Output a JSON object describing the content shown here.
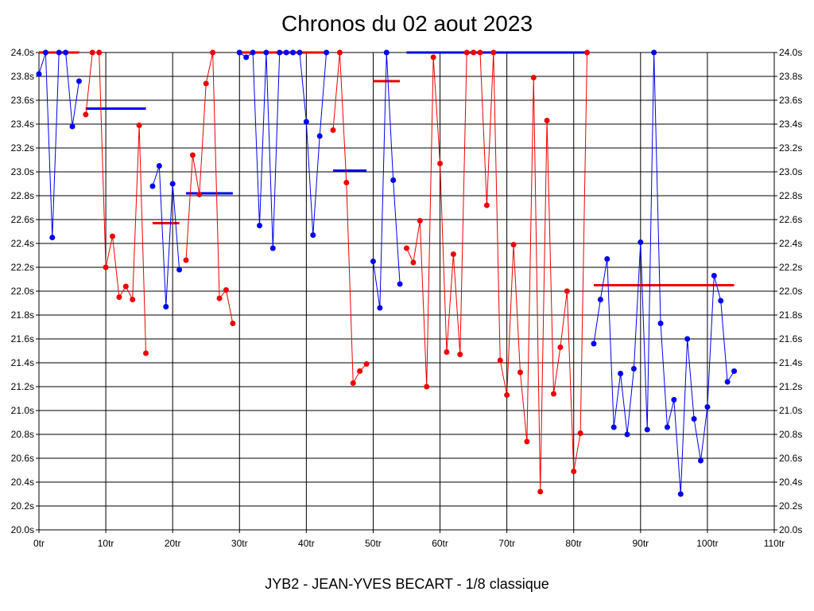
{
  "chart_data": {
    "type": "line",
    "title": "Chronos du 02 aout 2023",
    "subtitle": "JYB2 - JEAN-YVES BECART - 1/8 classique",
    "xlim": [
      0,
      110
    ],
    "ylim": [
      20.0,
      24.0
    ],
    "x_ticks": [
      0,
      10,
      20,
      30,
      40,
      50,
      60,
      70,
      80,
      90,
      100,
      110
    ],
    "x_tick_labels": [
      "0tr",
      "10tr",
      "20tr",
      "30tr",
      "40tr",
      "50tr",
      "60tr",
      "70tr",
      "80tr",
      "90tr",
      "100tr",
      "110tr"
    ],
    "y_ticks": [
      20.0,
      20.2,
      20.4,
      20.6,
      20.8,
      21.0,
      21.2,
      21.4,
      21.6,
      21.8,
      22.0,
      22.2,
      22.4,
      22.6,
      22.8,
      23.0,
      23.2,
      23.4,
      23.6,
      23.8,
      24.0
    ],
    "y_tick_labels": [
      "20.0s",
      "20.2s",
      "20.4s",
      "20.6s",
      "20.8s",
      "21.0s",
      "21.2s",
      "21.4s",
      "21.6s",
      "21.8s",
      "22.0s",
      "22.2s",
      "22.4s",
      "22.6s",
      "22.8s",
      "23.0s",
      "23.2s",
      "23.4s",
      "23.6s",
      "23.8s",
      "24.0s"
    ],
    "grid": true,
    "y_axis_both_sides": true,
    "colors": {
      "blue": "#0000ee",
      "red": "#ee0000"
    },
    "series": [
      {
        "color": "blue",
        "points": [
          [
            0,
            23.82
          ],
          [
            1,
            24.0
          ],
          [
            2,
            22.45
          ],
          [
            3,
            24.0
          ],
          [
            4,
            24.0
          ],
          [
            5,
            23.38
          ],
          [
            6,
            23.76
          ]
        ]
      },
      {
        "color": "red",
        "points": [
          [
            7,
            23.48
          ],
          [
            8,
            24.0
          ],
          [
            9,
            24.0
          ],
          [
            10,
            22.2
          ],
          [
            11,
            22.46
          ],
          [
            12,
            21.95
          ],
          [
            13,
            22.04
          ],
          [
            14,
            21.93
          ],
          [
            15,
            23.39
          ],
          [
            16,
            21.48
          ]
        ]
      },
      {
        "color": "blue",
        "points": [
          [
            17,
            22.88
          ],
          [
            18,
            23.05
          ],
          [
            19,
            21.87
          ],
          [
            20,
            22.9
          ],
          [
            21,
            22.18
          ]
        ]
      },
      {
        "color": "red",
        "points": [
          [
            22,
            22.26
          ],
          [
            23,
            23.14
          ],
          [
            24,
            22.81
          ],
          [
            25,
            23.74
          ],
          [
            26,
            24.0
          ],
          [
            27,
            21.94
          ],
          [
            28,
            22.01
          ],
          [
            29,
            21.73
          ]
        ]
      },
      {
        "color": "blue",
        "points": [
          [
            30,
            24.0
          ],
          [
            31,
            23.96
          ],
          [
            32,
            24.0
          ],
          [
            33,
            22.55
          ],
          [
            34,
            24.0
          ],
          [
            35,
            22.36
          ],
          [
            36,
            24.0
          ],
          [
            37,
            24.0
          ],
          [
            38,
            24.0
          ],
          [
            39,
            24.0
          ],
          [
            40,
            23.42
          ],
          [
            41,
            22.47
          ],
          [
            42,
            23.3
          ],
          [
            43,
            24.0
          ]
        ]
      },
      {
        "color": "red",
        "points": [
          [
            44,
            23.35
          ],
          [
            45,
            24.0
          ],
          [
            46,
            22.91
          ],
          [
            47,
            21.23
          ],
          [
            48,
            21.33
          ],
          [
            49,
            21.39
          ]
        ]
      },
      {
        "color": "blue",
        "points": [
          [
            50,
            22.25
          ],
          [
            51,
            21.86
          ],
          [
            52,
            24.0
          ],
          [
            53,
            22.93
          ],
          [
            54,
            22.06
          ]
        ]
      },
      {
        "color": "red",
        "points": [
          [
            55,
            22.36
          ],
          [
            56,
            22.24
          ],
          [
            57,
            22.59
          ],
          [
            58,
            21.2
          ],
          [
            59,
            23.96
          ],
          [
            60,
            23.07
          ],
          [
            61,
            21.49
          ],
          [
            62,
            22.31
          ],
          [
            63,
            21.47
          ],
          [
            64,
            24.0
          ],
          [
            65,
            24.0
          ],
          [
            66,
            24.0
          ],
          [
            67,
            22.72
          ],
          [
            68,
            24.0
          ],
          [
            69,
            21.42
          ],
          [
            70,
            21.13
          ],
          [
            71,
            22.39
          ],
          [
            72,
            21.32
          ],
          [
            73,
            20.74
          ],
          [
            74,
            23.79
          ],
          [
            75,
            20.32
          ],
          [
            76,
            23.43
          ],
          [
            77,
            21.14
          ],
          [
            78,
            21.53
          ],
          [
            79,
            22.0
          ],
          [
            80,
            20.49
          ],
          [
            81,
            20.81
          ],
          [
            82,
            24.0
          ]
        ]
      },
      {
        "color": "blue",
        "points": [
          [
            83,
            21.56
          ],
          [
            84,
            21.93
          ],
          [
            85,
            22.27
          ],
          [
            86,
            20.86
          ],
          [
            87,
            21.31
          ],
          [
            88,
            20.8
          ],
          [
            89,
            21.35
          ],
          [
            90,
            22.41
          ],
          [
            91,
            20.84
          ],
          [
            92,
            24.0
          ],
          [
            93,
            21.73
          ],
          [
            94,
            20.86
          ],
          [
            95,
            21.09
          ],
          [
            96,
            20.3
          ],
          [
            97,
            21.6
          ],
          [
            98,
            20.93
          ],
          [
            99,
            20.58
          ],
          [
            100,
            21.03
          ],
          [
            101,
            22.13
          ],
          [
            102,
            21.92
          ],
          [
            103,
            21.24
          ],
          [
            104,
            21.33
          ]
        ]
      }
    ],
    "average_lines": [
      {
        "color": "red",
        "x": [
          0,
          6
        ],
        "y": 24.0
      },
      {
        "color": "blue",
        "x": [
          7,
          16
        ],
        "y": 23.53
      },
      {
        "color": "red",
        "x": [
          17,
          21
        ],
        "y": 22.57
      },
      {
        "color": "blue",
        "x": [
          22,
          29
        ],
        "y": 22.82
      },
      {
        "color": "red",
        "x": [
          30,
          43
        ],
        "y": 24.0
      },
      {
        "color": "blue",
        "x": [
          44,
          49
        ],
        "y": 23.01
      },
      {
        "color": "red",
        "x": [
          50,
          54
        ],
        "y": 23.76
      },
      {
        "color": "blue",
        "x": [
          55,
          82
        ],
        "y": 24.0
      },
      {
        "color": "red",
        "x": [
          83,
          104
        ],
        "y": 22.05
      }
    ]
  }
}
